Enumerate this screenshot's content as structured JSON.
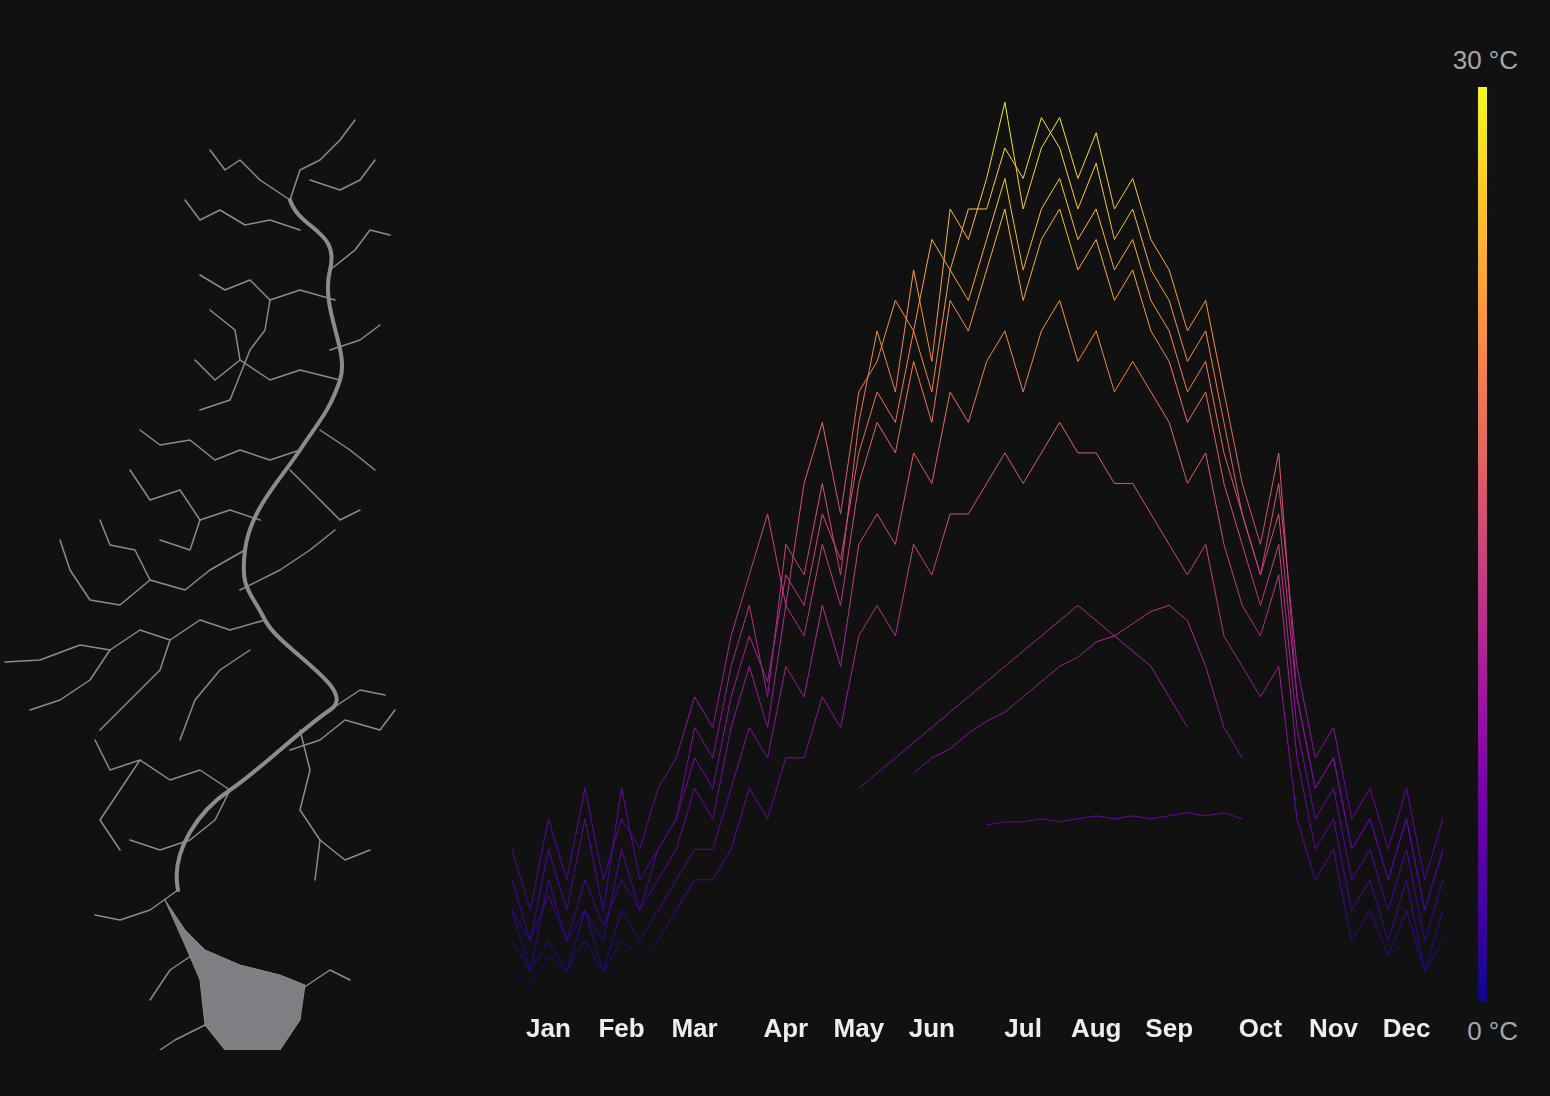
{
  "chart_data": {
    "type": "line",
    "categories": [
      null,
      null,
      "Jan",
      null,
      null,
      null,
      "Feb",
      null,
      null,
      null,
      "Mar",
      null,
      null,
      null,
      null,
      "Apr",
      null,
      null,
      null,
      "May",
      null,
      null,
      null,
      "Jun",
      null,
      null,
      null,
      null,
      "Jul",
      null,
      null,
      null,
      "Aug",
      null,
      null,
      null,
      "Sep",
      null,
      null,
      null,
      null,
      "Oct",
      null,
      null,
      null,
      "Nov",
      null,
      null,
      null,
      "Dec",
      null,
      null
    ],
    "series": [
      {
        "values": [
          4,
          2,
          5,
          3,
          6,
          3,
          7,
          4,
          5,
          6,
          9,
          8,
          11,
          13,
          10,
          15,
          14,
          17,
          14,
          19,
          22,
          20,
          24,
          21,
          26,
          25,
          27,
          29.5,
          26,
          28,
          29,
          27,
          28.5,
          26,
          27,
          25,
          24,
          22,
          23,
          20,
          17,
          15,
          18,
          10,
          7,
          8,
          5,
          6,
          4,
          6,
          3,
          5
        ]
      },
      {
        "values": [
          3,
          1,
          4,
          2,
          3,
          2,
          5,
          3,
          4,
          5,
          7,
          6,
          9,
          11,
          9,
          13,
          12,
          15,
          13,
          17,
          19,
          18,
          21,
          19,
          23,
          22,
          24,
          26,
          23,
          25,
          26,
          24,
          25,
          23,
          24,
          22,
          21,
          19,
          20,
          17,
          15,
          13,
          15,
          9,
          6,
          7,
          4,
          5,
          3,
          5,
          2,
          4
        ]
      },
      {
        "values": [
          2,
          1,
          2,
          1,
          3,
          1,
          3,
          2,
          3,
          4,
          5,
          5,
          7,
          9,
          8,
          11,
          10,
          13,
          11,
          15,
          16,
          15,
          18,
          17,
          20,
          19,
          21,
          22,
          20,
          22,
          23,
          21,
          22,
          20,
          21,
          20,
          19,
          17,
          18,
          15,
          13,
          12,
          14,
          8,
          5,
          6,
          3,
          4,
          2,
          4,
          1,
          3
        ]
      },
      {
        "values": [
          1,
          0.5,
          1.5,
          1,
          2,
          1,
          2,
          1.5,
          2,
          3,
          4,
          4,
          5,
          7,
          6,
          8,
          8,
          10,
          9,
          12,
          13,
          12,
          15,
          14,
          16,
          16,
          17,
          18,
          17,
          18,
          19,
          18,
          18,
          17,
          17,
          16,
          15,
          14,
          15,
          12,
          11,
          10,
          11,
          6,
          4,
          5,
          2,
          3,
          1.5,
          3,
          1,
          2
        ]
      },
      {
        "values": [
          5,
          3,
          6,
          4,
          7,
          4,
          6,
          5,
          7,
          8,
          10,
          9,
          12,
          14,
          16,
          13,
          17,
          19,
          16,
          20,
          21,
          23,
          22,
          25,
          24,
          26,
          26,
          28,
          27,
          29,
          28,
          26,
          27.5,
          25,
          26,
          24,
          23,
          21,
          22,
          19,
          16,
          14,
          17,
          11,
          8,
          9,
          6,
          7,
          5,
          7,
          4,
          6
        ]
      },
      {
        "values": [
          3,
          2,
          3.5,
          2,
          4,
          2.5,
          4,
          3,
          5,
          6,
          8,
          7,
          10,
          12,
          10.5,
          14,
          13,
          16,
          14.5,
          18,
          20,
          19,
          22,
          20,
          24,
          23,
          25,
          27,
          24,
          26,
          27,
          25,
          26,
          24,
          25,
          23,
          22,
          20,
          21,
          18,
          16,
          14,
          16,
          10,
          7,
          8,
          5,
          6,
          4,
          6,
          3,
          5
        ]
      },
      {
        "values": [
          null,
          null,
          null,
          null,
          null,
          null,
          null,
          null,
          null,
          null,
          null,
          null,
          null,
          null,
          null,
          null,
          null,
          null,
          null,
          7,
          7.5,
          8,
          8.5,
          9,
          9.5,
          10,
          10.5,
          11,
          11.5,
          12,
          12.5,
          13,
          12.5,
          12,
          11.5,
          11,
          10,
          9,
          null,
          null,
          null,
          null,
          null,
          null,
          null,
          null,
          null,
          null,
          null,
          null,
          null,
          null
        ]
      },
      {
        "values": [
          null,
          null,
          null,
          null,
          null,
          null,
          null,
          null,
          null,
          null,
          null,
          null,
          null,
          null,
          null,
          null,
          null,
          null,
          null,
          null,
          null,
          null,
          7.5,
          8,
          8.3,
          8.8,
          9.2,
          9.5,
          10,
          10.5,
          11,
          11.3,
          11.8,
          12,
          12.4,
          12.8,
          13,
          12.5,
          11,
          9,
          8,
          null,
          null,
          null,
          null,
          null,
          null,
          null,
          null,
          null,
          null,
          null
        ]
      },
      {
        "values": [
          null,
          null,
          null,
          null,
          null,
          null,
          null,
          null,
          null,
          null,
          null,
          null,
          null,
          null,
          null,
          null,
          null,
          null,
          null,
          null,
          null,
          null,
          null,
          null,
          null,
          null,
          5.8,
          5.9,
          5.9,
          6.0,
          5.9,
          6.0,
          6.1,
          6.0,
          6.1,
          6.0,
          6.1,
          6.2,
          6.1,
          6.2,
          6.0,
          null,
          null,
          null,
          null,
          null,
          null,
          null,
          null,
          null,
          null,
          null
        ]
      }
    ],
    "ylim": [
      0,
      30
    ],
    "tick_labels": "x",
    "grid": false,
    "colorbar": {
      "range": [
        0,
        30
      ],
      "ticks": [
        {
          "value": 0,
          "label": "0 °C"
        },
        {
          "value": 30,
          "label": "30 °C"
        }
      ],
      "colors": [
        "#0d0887",
        "#46039f",
        "#7201a8",
        "#9c179e",
        "#bd3786",
        "#d8576b",
        "#ed7953",
        "#fb9f3a",
        "#fdca26",
        "#f0f921"
      ]
    }
  }
}
